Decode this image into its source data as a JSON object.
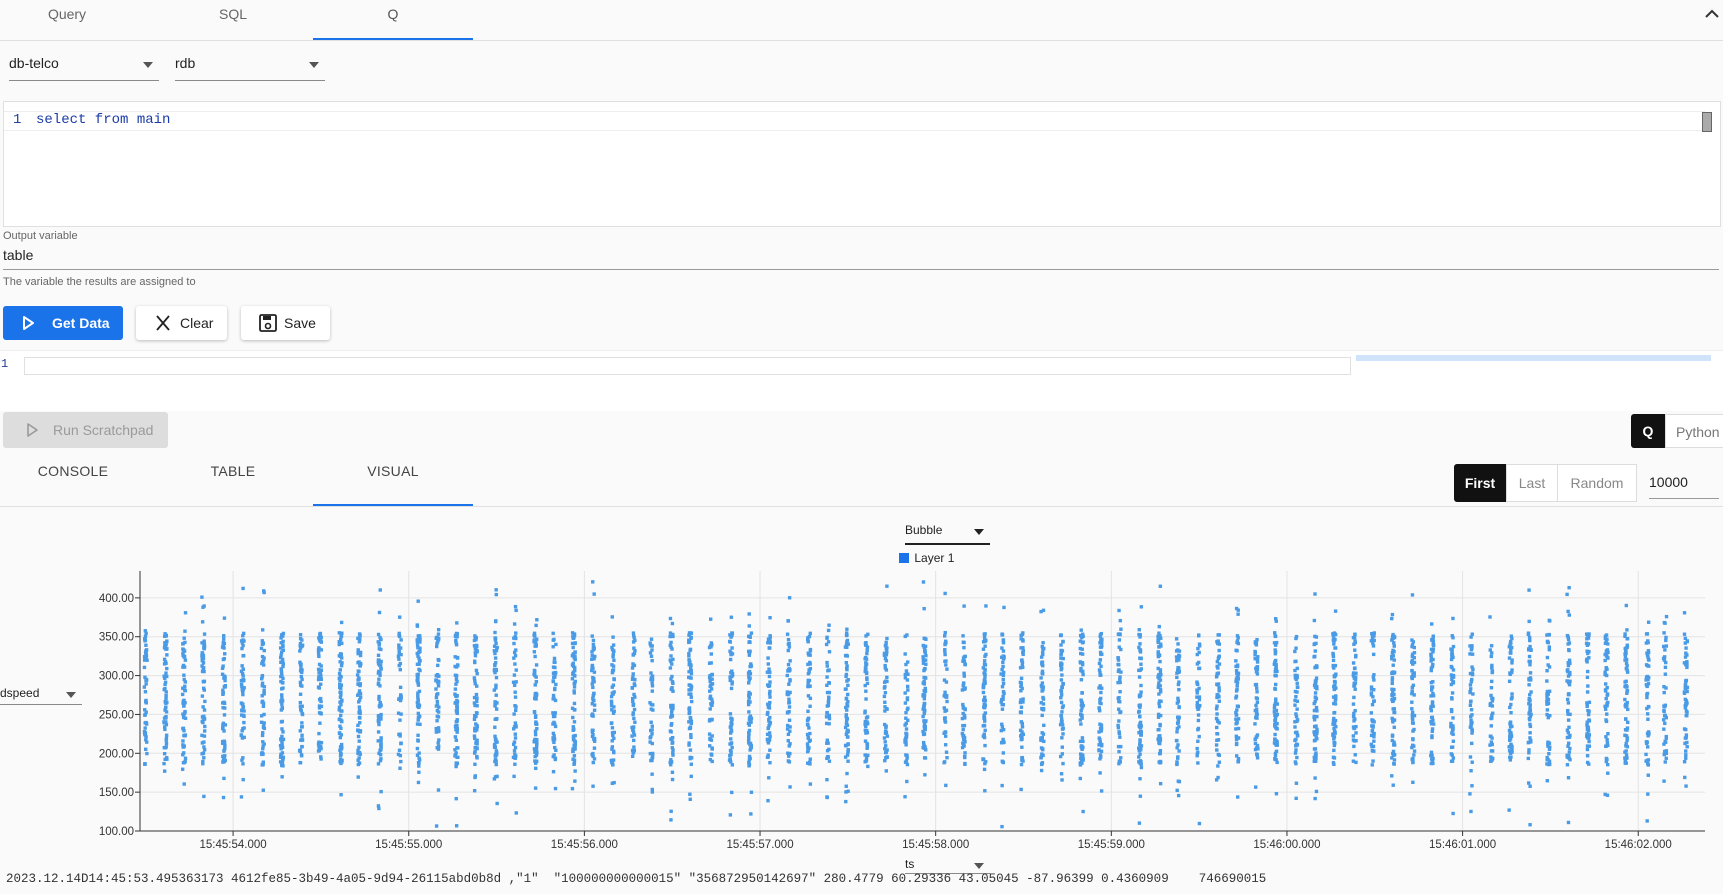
{
  "top_tabs": [
    {
      "label": "Query"
    },
    {
      "label": "SQL"
    },
    {
      "label": "Q"
    }
  ],
  "database_select": "db-telco",
  "process_select": "rdb",
  "editor": {
    "line_number": "1",
    "code": "select from main"
  },
  "output_variable": {
    "label": "Output variable",
    "value": "table",
    "hint": "The variable the results are assigned to"
  },
  "buttons": {
    "get_data": "Get Data",
    "clear": "Clear",
    "save": "Save"
  },
  "scratchpad": {
    "line_number": "1",
    "run_label": "Run Scratchpad",
    "lang_q": "Q",
    "lang_python": "Python"
  },
  "result_tabs": [
    {
      "label": "CONSOLE"
    },
    {
      "label": "TABLE"
    },
    {
      "label": "VISUAL"
    }
  ],
  "sampling": {
    "first": "First",
    "last": "Last",
    "random": "Random",
    "count": "10000"
  },
  "visual": {
    "chart_type_select": "Bubble",
    "y_column_select": "dspeed",
    "x_column_select": "ts"
  },
  "chart_data": {
    "type": "scatter",
    "title": "",
    "legend": [
      {
        "name": "Layer 1",
        "color": "#1a73e8"
      }
    ],
    "point_color": "#4a9be6",
    "xlabel": "ts",
    "ylabel": "dspeed",
    "x_ticks": [
      "15:45:54.000",
      "15:45:55.000",
      "15:45:56.000",
      "15:45:57.000",
      "15:45:58.000",
      "15:45:59.000",
      "15:46:00.000",
      "15:46:01.000",
      "15:46:02.000"
    ],
    "xlim": [
      "15:45:53.470",
      "15:46:02.380"
    ],
    "y_ticks": [
      "100.00",
      "150.00",
      "200.00",
      "250.00",
      "300.00",
      "350.00",
      "400.00"
    ],
    "ylim": [
      100,
      432
    ],
    "grid": true,
    "series": [
      {
        "name": "Layer 1",
        "summary": "dense vertical bands of points at ~0.11 s intervals between 15:45:53.5 and 15:46:02.4, dspeed mostly 180–360, outliers from 100 to 430"
      }
    ]
  },
  "data_preview_row": "2023.12.14D14:45:53.495363173 4612fe85-3b49-4a05-9d94-26115abd0b8d ,\"1\"  \"100000000000015\" \"356872950142697\" 280.4779 60.29336 43.05045 -87.96399 0.4360909    746690015"
}
